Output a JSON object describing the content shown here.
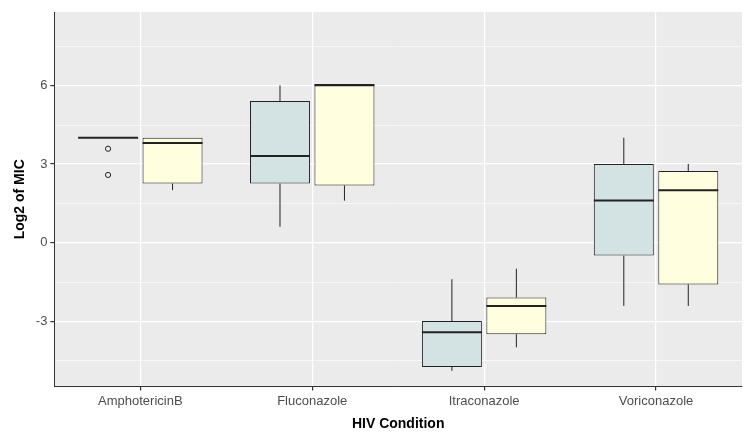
{
  "chart_data": {
    "type": "box",
    "x_label": "HIV Condition",
    "y_label": "Log2 of MIC",
    "categories": [
      "AmphotericinB",
      "Fluconazole",
      "Itraconazole",
      "Voriconazole"
    ],
    "series": [
      {
        "color": "#d3e3e3",
        "values": [
          {
            "min": 4.0,
            "q1": 4.0,
            "median": 4.0,
            "q3": 4.0,
            "max": 4.0,
            "outliers": [
              3.58,
              2.58
            ]
          },
          {
            "min": 0.6,
            "q1": 2.25,
            "median": 3.3,
            "q3": 5.4,
            "max": 6.0,
            "outliers": []
          },
          {
            "min": -4.9,
            "q1": -4.75,
            "median": -3.43,
            "q3": -3.0,
            "max": -1.4,
            "outliers": []
          },
          {
            "min": -2.42,
            "q1": -0.5,
            "median": 1.6,
            "q3": 3.0,
            "max": 4.0,
            "outliers": []
          }
        ]
      },
      {
        "color": "#ffffe0",
        "values": [
          {
            "min": 2.0,
            "q1": 2.25,
            "median": 3.8,
            "q3": 4.0,
            "max": 4.0,
            "outliers": []
          },
          {
            "min": 1.6,
            "q1": 2.18,
            "median": 6.0,
            "q3": 6.05,
            "max": 6.05,
            "outliers": []
          },
          {
            "min": -4.0,
            "q1": -3.5,
            "median": -2.42,
            "q3": -2.1,
            "max": -1.0,
            "outliers": []
          },
          {
            "min": -2.42,
            "q1": -1.6,
            "median": 2.0,
            "q3": 2.73,
            "max": 3.0,
            "outliers": []
          }
        ]
      }
    ],
    "ylim": [
      -5.5,
      8.8
    ],
    "yticks": [
      -3,
      0,
      3,
      6
    ],
    "grid": true
  }
}
